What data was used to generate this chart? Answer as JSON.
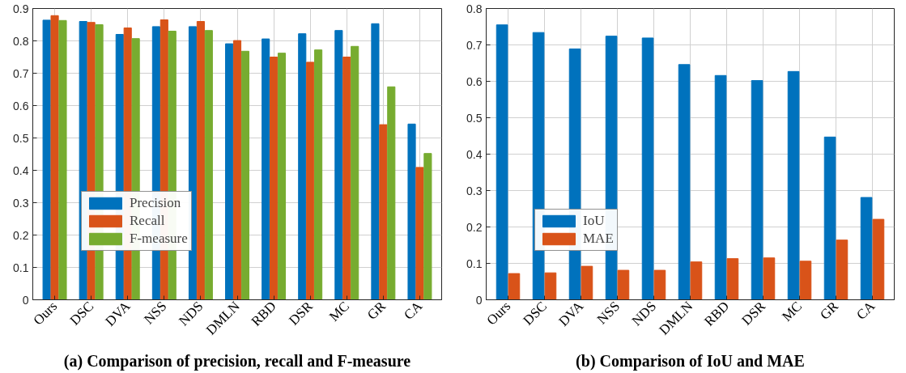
{
  "chart_data": [
    {
      "type": "bar",
      "title": "(a) Comparison of precision, recall and F-measure",
      "categories": [
        "Ours",
        "DSC",
        "DVA",
        "NSS",
        "NDS",
        "DMLN",
        "RBD",
        "DSR",
        "MC",
        "GR",
        "CA"
      ],
      "ylim": [
        0,
        0.9
      ],
      "yticks": [
        0,
        0.1,
        0.2,
        0.3,
        0.4,
        0.5,
        0.6,
        0.7,
        0.8,
        0.9
      ],
      "grid": true,
      "legend": "bottom left",
      "series": [
        {
          "name": "Precision",
          "color": "#0072bd",
          "values": [
            0.864,
            0.86,
            0.82,
            0.844,
            0.844,
            0.791,
            0.806,
            0.822,
            0.832,
            0.853,
            0.543
          ]
        },
        {
          "name": "Recall",
          "color": "#d95319",
          "values": [
            0.878,
            0.857,
            0.84,
            0.865,
            0.86,
            0.801,
            0.75,
            0.734,
            0.75,
            0.541,
            0.409
          ]
        },
        {
          "name": "F-measure",
          "color": "#77ac30",
          "values": [
            0.863,
            0.85,
            0.807,
            0.83,
            0.832,
            0.768,
            0.762,
            0.772,
            0.783,
            0.658,
            0.452
          ]
        }
      ]
    },
    {
      "type": "bar",
      "title": "(b) Comparison of IoU and MAE",
      "categories": [
        "Ours",
        "DSC",
        "DVA",
        "NSS",
        "NDS",
        "DMLN",
        "RBD",
        "DSR",
        "MC",
        "GR",
        "CA"
      ],
      "ylim": [
        0,
        0.8
      ],
      "yticks": [
        0,
        0.1,
        0.2,
        0.3,
        0.4,
        0.5,
        0.6,
        0.7,
        0.8
      ],
      "grid": true,
      "legend": "bottom left",
      "series": [
        {
          "name": "IoU",
          "color": "#0072bd",
          "values": [
            0.755,
            0.734,
            0.689,
            0.724,
            0.719,
            0.646,
            0.616,
            0.602,
            0.627,
            0.447,
            0.281
          ]
        },
        {
          "name": "MAE",
          "color": "#d95319",
          "values": [
            0.072,
            0.074,
            0.092,
            0.081,
            0.081,
            0.104,
            0.113,
            0.115,
            0.106,
            0.164,
            0.221
          ]
        }
      ]
    }
  ]
}
